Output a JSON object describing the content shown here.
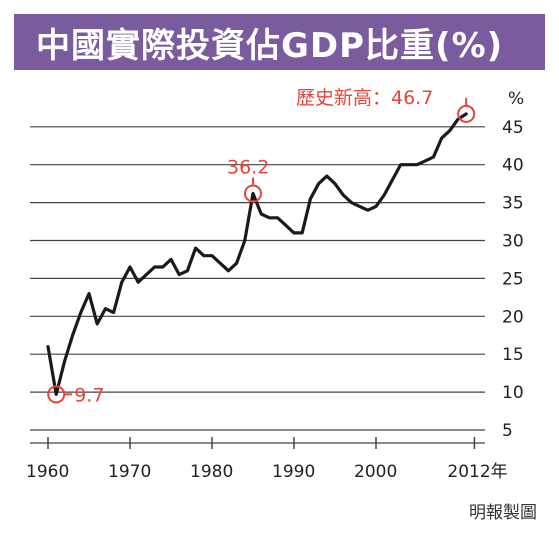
{
  "title": "中國實際投資佔GDP比重(%)",
  "source": "明報製圖",
  "colors": {
    "title_bg": "#7a5c9e",
    "line": "#1a1a1a",
    "annotation": "#e8453c",
    "grid": "#444444"
  },
  "chart_data": {
    "type": "line",
    "title": "中國實際投資佔GDP比重(%)",
    "xlabel": "年",
    "ylabel": "%",
    "xlim": [
      1959,
      2013
    ],
    "ylim": [
      2,
      49
    ],
    "x_ticks": [
      {
        "value": 1960,
        "label": "1960"
      },
      {
        "value": 1970,
        "label": "1970"
      },
      {
        "value": 1980,
        "label": "1980"
      },
      {
        "value": 1990,
        "label": "1990"
      },
      {
        "value": 2000,
        "label": "2000"
      },
      {
        "value": 2012,
        "label": "2012年"
      }
    ],
    "y_ticks": [
      5,
      10,
      15,
      20,
      25,
      30,
      35,
      40,
      45
    ],
    "grid": "horizontal",
    "series": [
      {
        "x": [
          1960,
          1961,
          1962,
          1963,
          1964,
          1965,
          1966,
          1967,
          1968,
          1969,
          1970,
          1971,
          1972,
          1973,
          1974,
          1975,
          1976,
          1977,
          1978,
          1979,
          1980,
          1981,
          1982,
          1983,
          1984,
          1985,
          1986,
          1987,
          1988,
          1989,
          1990,
          1991,
          1992,
          1993,
          1994,
          1995,
          1996,
          1997,
          1998,
          1999,
          2000,
          2001,
          2002,
          2003,
          2004,
          2005,
          2006,
          2007,
          2008,
          2009,
          2010,
          2011
        ],
        "y": [
          16,
          9.7,
          14,
          17.5,
          20.5,
          23,
          19,
          21,
          20.5,
          24.5,
          26.5,
          24.5,
          25.5,
          26.5,
          26.5,
          27.5,
          25.5,
          26,
          29,
          28,
          28,
          27,
          26,
          27,
          30,
          36.2,
          33.5,
          33,
          33,
          32,
          31,
          31,
          35.5,
          37.5,
          38.5,
          37.5,
          36,
          35,
          34.5,
          34,
          34.5,
          36,
          38,
          40,
          40,
          40,
          40.5,
          41,
          43.5,
          44.5,
          46,
          46.7
        ]
      }
    ],
    "annotations": [
      {
        "label": "9.7",
        "x": 1961,
        "y": 9.7
      },
      {
        "label": "36.2",
        "x": 1985,
        "y": 36.2
      },
      {
        "label": "歷史新高：46.7",
        "x": 2011,
        "y": 46.7
      }
    ]
  }
}
